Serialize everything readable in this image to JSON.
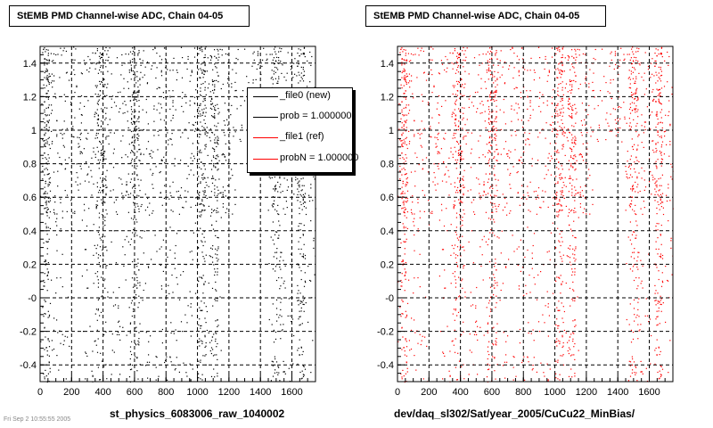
{
  "footnote": "Fri Sep  2 10:55:55 2005",
  "legend": {
    "entries": [
      {
        "label": "_file0 (new)",
        "color": "#000000"
      },
      {
        "label": "prob = 1.000000",
        "color": "#000000"
      },
      {
        "label": "_file1 (ref)",
        "color": "#ff0000"
      },
      {
        "label": "probN = 1.000000",
        "color": "#ff0000"
      }
    ]
  },
  "chart_data": [
    {
      "type": "scatter",
      "title": "StEMB PMD Channel-wise ADC, Chain 04-05",
      "xlabel": "st_physics_6083006_raw_1040002",
      "ylabel": "",
      "xlim": [
        0,
        1750
      ],
      "ylim": [
        -0.5,
        1.5
      ],
      "x_ticks": [
        "0",
        "200",
        "400",
        "600",
        "800",
        "1000",
        "1200",
        "1400",
        "1600"
      ],
      "y_ticks": [
        "-0.4",
        "-0.2",
        "-0",
        "0.2",
        "0.4",
        "0.6",
        "0.8",
        "1",
        "1.2",
        "1.4"
      ],
      "color": "#000000",
      "grid": true,
      "dense_x_bands": [
        [
          20,
          60
        ],
        [
          350,
          420
        ],
        [
          570,
          630
        ],
        [
          1000,
          1050
        ],
        [
          1080,
          1130
        ],
        [
          1470,
          1530
        ],
        [
          1630,
          1680
        ]
      ],
      "empty_regions": [
        {
          "x": [
            1150,
            1450
          ],
          "y": [
            -0.5,
            0.5
          ]
        },
        {
          "x": [
            200,
            260
          ],
          "y": [
            -0.5,
            0.5
          ]
        },
        {
          "x": [
            1240,
            1440
          ],
          "y": [
            0.5,
            0.9
          ]
        }
      ]
    },
    {
      "type": "scatter",
      "title": "StEMB PMD Channel-wise ADC, Chain 04-05",
      "xlabel": "dev/daq_sl302/Sat/year_2005/CuCu22_MinBias/",
      "ylabel": "",
      "xlim": [
        0,
        1750
      ],
      "ylim": [
        -0.5,
        1.5
      ],
      "x_ticks": [
        "0",
        "200",
        "400",
        "600",
        "800",
        "1000",
        "1200",
        "1400",
        "1600"
      ],
      "y_ticks": [
        "-0.4",
        "-0.2",
        "-0",
        "0.2",
        "0.4",
        "0.6",
        "0.8",
        "1",
        "1.2",
        "1.4"
      ],
      "color": "#ff0000",
      "grid": true,
      "dense_x_bands": [
        [
          20,
          60
        ],
        [
          350,
          420
        ],
        [
          570,
          630
        ],
        [
          1000,
          1050
        ],
        [
          1080,
          1130
        ],
        [
          1470,
          1530
        ],
        [
          1630,
          1680
        ]
      ],
      "empty_regions": [
        {
          "x": [
            1150,
            1450
          ],
          "y": [
            -0.5,
            0.5
          ]
        },
        {
          "x": [
            200,
            260
          ],
          "y": [
            -0.5,
            0.5
          ]
        },
        {
          "x": [
            1240,
            1440
          ],
          "y": [
            0.5,
            0.9
          ]
        }
      ]
    }
  ]
}
